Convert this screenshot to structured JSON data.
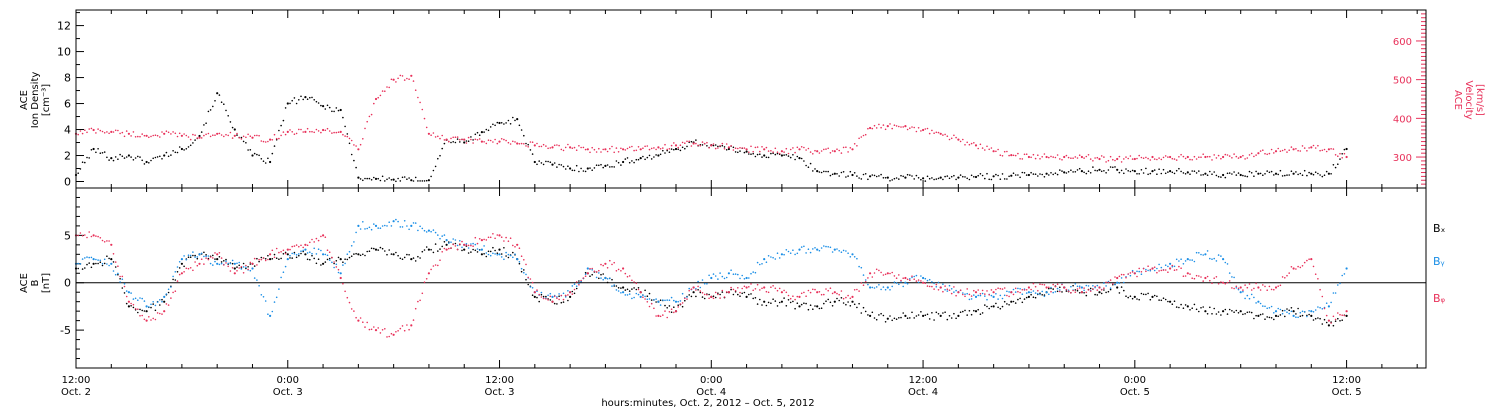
{
  "chart_data": [
    {
      "type": "scatter",
      "panel": "top",
      "ylabel_left": [
        "ACE",
        "Ion Density",
        "[cm⁻³]"
      ],
      "ylabel_right": [
        "ACE",
        "Velocity",
        "[km/s]"
      ],
      "ylim_left": [
        -0.5,
        13.2
      ],
      "ylim_right": [
        220,
        680
      ],
      "yticks_left": [
        "0",
        "2",
        "4",
        "6",
        "8",
        "10",
        "12"
      ],
      "yticks_right": [
        "300",
        "400",
        "500",
        "600"
      ],
      "ytick_values_left": [
        0,
        2,
        4,
        6,
        8,
        10,
        12
      ],
      "ytick_values_right": [
        300,
        400,
        500,
        600
      ],
      "colors": {
        "density": "#000000",
        "velocity": "#e8315a"
      },
      "series": [
        {
          "axis": "left",
          "color": "#000000",
          "x": [
            0,
            1,
            2,
            3,
            4,
            5,
            6,
            7,
            8,
            9,
            10,
            11,
            12,
            13,
            14,
            15,
            16,
            17,
            18,
            19,
            20,
            21,
            22,
            23,
            24,
            25,
            26,
            27,
            28,
            29,
            30,
            31,
            32,
            33,
            34,
            35,
            36,
            37,
            38,
            39,
            40,
            41,
            42,
            43,
            44,
            45,
            46,
            47,
            48,
            49,
            50,
            51,
            52,
            53,
            54,
            55,
            56,
            57,
            58,
            59,
            60,
            61,
            62,
            63,
            64,
            65,
            66,
            67,
            68,
            69,
            70,
            71,
            72
          ],
          "values": [
            0.5,
            2.5,
            1.8,
            2.0,
            1.5,
            2.0,
            2.5,
            3.5,
            6.8,
            4.0,
            2.0,
            1.5,
            6.0,
            6.5,
            5.8,
            5.5,
            0.3,
            0.2,
            0.15,
            0.1,
            0.1,
            3.2,
            3.0,
            3.8,
            4.5,
            4.8,
            1.5,
            1.3,
            1.0,
            1.0,
            1.2,
            1.5,
            1.8,
            2.0,
            2.5,
            3.0,
            2.8,
            2.5,
            2.3,
            2.0,
            2.0,
            1.8,
            0.8,
            0.6,
            0.5,
            0.4,
            0.3,
            0.3,
            0.25,
            0.3,
            0.3,
            0.35,
            0.4,
            0.45,
            0.5,
            0.6,
            0.7,
            0.8,
            0.9,
            0.9,
            0.8,
            0.8,
            0.8,
            0.7,
            0.6,
            0.5,
            0.5,
            0.6,
            0.6,
            0.6,
            0.6,
            0.6,
            2.5
          ]
        },
        {
          "axis": "right",
          "color": "#e8315a",
          "x": [
            0,
            1,
            2,
            3,
            4,
            5,
            6,
            7,
            8,
            9,
            10,
            11,
            12,
            13,
            14,
            15,
            16,
            17,
            18,
            19,
            20,
            21,
            22,
            23,
            24,
            25,
            26,
            27,
            28,
            29,
            30,
            31,
            32,
            33,
            34,
            35,
            36,
            37,
            38,
            39,
            40,
            41,
            42,
            43,
            44,
            45,
            46,
            47,
            48,
            49,
            50,
            51,
            52,
            53,
            54,
            55,
            56,
            57,
            58,
            59,
            60,
            61,
            62,
            63,
            64,
            65,
            66,
            67,
            68,
            69,
            70,
            71,
            72
          ],
          "values": [
            360,
            370,
            365,
            360,
            355,
            360,
            355,
            350,
            360,
            355,
            350,
            345,
            365,
            365,
            370,
            365,
            320,
            450,
            500,
            510,
            360,
            345,
            345,
            340,
            340,
            335,
            330,
            325,
            325,
            320,
            320,
            320,
            320,
            325,
            330,
            335,
            330,
            325,
            320,
            320,
            315,
            320,
            315,
            315,
            320,
            375,
            380,
            380,
            370,
            360,
            345,
            330,
            315,
            305,
            300,
            300,
            300,
            300,
            295,
            295,
            295,
            300,
            300,
            300,
            300,
            300,
            300,
            310,
            315,
            320,
            325,
            320,
            300
          ]
        }
      ]
    },
    {
      "type": "scatter",
      "panel": "bottom",
      "ylabel_left": [
        "ACE",
        "B",
        "[nT]"
      ],
      "ylim": [
        -9,
        10
      ],
      "yticks": [
        "-5",
        "0",
        "5"
      ],
      "ytick_values": [
        -5,
        0,
        5
      ],
      "legend": [
        "Bₓ",
        "Bᵧ",
        "Bᵩ"
      ],
      "colors": {
        "bx": "#000000",
        "by": "#1a8ee6",
        "bz": "#e8315a"
      },
      "series": [
        {
          "color": "#000000",
          "x": [
            0,
            1,
            2,
            3,
            4,
            5,
            6,
            7,
            8,
            9,
            10,
            11,
            12,
            13,
            14,
            15,
            16,
            17,
            18,
            19,
            20,
            21,
            22,
            23,
            24,
            25,
            26,
            27,
            28,
            29,
            30,
            31,
            32,
            33,
            34,
            35,
            36,
            37,
            38,
            39,
            40,
            41,
            42,
            43,
            44,
            45,
            46,
            47,
            48,
            49,
            50,
            51,
            52,
            53,
            54,
            55,
            56,
            57,
            58,
            59,
            60,
            61,
            62,
            63,
            64,
            65,
            66,
            67,
            68,
            69,
            70,
            71,
            72
          ],
          "values": [
            1.5,
            2.0,
            2.5,
            -2.5,
            -3.0,
            -2.0,
            2.0,
            3.0,
            2.5,
            1.5,
            2.0,
            2.5,
            3.0,
            3.0,
            2.0,
            2.5,
            3.0,
            3.5,
            3.0,
            2.5,
            3.5,
            4.0,
            3.5,
            3.0,
            3.5,
            2.5,
            -1.5,
            -2.0,
            -1.5,
            1.0,
            0.5,
            -0.5,
            -1.0,
            -2.0,
            -3.0,
            -1.0,
            -1.5,
            -1.0,
            -1.5,
            -2.0,
            -2.0,
            -2.5,
            -2.5,
            -2.0,
            -2.0,
            -3.5,
            -3.8,
            -3.5,
            -3.5,
            -3.5,
            -3.5,
            -3.0,
            -2.5,
            -2.0,
            -1.5,
            -1.0,
            -0.5,
            -1.0,
            -1.0,
            -0.5,
            -1.5,
            -1.5,
            -2.0,
            -2.5,
            -3.0,
            -3.0,
            -3.0,
            -3.5,
            -3.5,
            -3.0,
            -3.5,
            -4.5,
            -3.5
          ]
        },
        {
          "color": "#1a8ee6",
          "x": [
            0,
            1,
            2,
            3,
            4,
            5,
            6,
            7,
            8,
            9,
            10,
            11,
            12,
            13,
            14,
            15,
            16,
            17,
            18,
            19,
            20,
            21,
            22,
            23,
            24,
            25,
            26,
            27,
            28,
            29,
            30,
            31,
            32,
            33,
            34,
            35,
            36,
            37,
            38,
            39,
            40,
            41,
            42,
            43,
            44,
            45,
            46,
            47,
            48,
            49,
            50,
            51,
            52,
            53,
            54,
            55,
            56,
            57,
            58,
            59,
            60,
            61,
            62,
            63,
            64,
            65,
            66,
            67,
            68,
            69,
            70,
            71,
            72
          ],
          "values": [
            2.0,
            2.5,
            2.0,
            -1.0,
            -2.5,
            -1.5,
            2.5,
            3.0,
            2.0,
            2.0,
            1.5,
            -3.5,
            2.5,
            3.5,
            3.0,
            1.0,
            6.0,
            6.0,
            6.5,
            6.0,
            5.5,
            4.5,
            4.0,
            3.5,
            3.0,
            2.5,
            -1.0,
            -1.5,
            -1.0,
            1.5,
            0.5,
            -1.0,
            -1.5,
            -2.0,
            -2.0,
            -0.5,
            0.5,
            1.0,
            0.5,
            2.5,
            3.0,
            3.5,
            3.5,
            3.5,
            3.0,
            -0.5,
            -0.5,
            0.0,
            0.5,
            -0.5,
            -1.0,
            -1.5,
            -1.5,
            -1.0,
            -1.0,
            -1.0,
            -0.5,
            -0.5,
            -0.5,
            0.0,
            1.0,
            1.5,
            2.0,
            2.5,
            3.0,
            2.5,
            -1.0,
            -2.0,
            -3.0,
            -3.5,
            -3.0,
            -2.5,
            1.5
          ]
        },
        {
          "color": "#e8315a",
          "x": [
            0,
            1,
            2,
            3,
            4,
            5,
            6,
            7,
            8,
            9,
            10,
            11,
            12,
            13,
            14,
            15,
            16,
            17,
            18,
            19,
            20,
            21,
            22,
            23,
            24,
            25,
            26,
            27,
            28,
            29,
            30,
            31,
            32,
            33,
            34,
            35,
            36,
            37,
            38,
            39,
            40,
            41,
            42,
            43,
            44,
            45,
            46,
            47,
            48,
            49,
            50,
            51,
            52,
            53,
            54,
            55,
            56,
            57,
            58,
            59,
            60,
            61,
            62,
            63,
            64,
            65,
            66,
            67,
            68,
            69,
            70,
            71,
            72
          ],
          "values": [
            5.0,
            5.0,
            4.0,
            -2.0,
            -4.0,
            -3.0,
            1.0,
            2.0,
            3.0,
            1.0,
            2.0,
            3.0,
            3.5,
            4.0,
            5.0,
            0.5,
            -4.0,
            -5.0,
            -5.5,
            -4.5,
            1.0,
            3.5,
            4.0,
            4.5,
            5.0,
            4.0,
            -1.0,
            -2.0,
            -1.0,
            1.0,
            2.0,
            1.5,
            -1.0,
            -3.5,
            -3.0,
            -0.5,
            -1.5,
            -1.0,
            -0.5,
            -0.5,
            -1.0,
            -1.5,
            -1.0,
            -1.0,
            -1.5,
            1.0,
            1.0,
            0.5,
            0.0,
            -0.5,
            -1.0,
            -1.0,
            -1.0,
            -1.0,
            -0.5,
            -0.5,
            -0.5,
            -1.0,
            -0.5,
            0.5,
            1.0,
            1.5,
            1.5,
            1.0,
            0.5,
            0.0,
            -0.5,
            -0.5,
            -0.5,
            1.5,
            2.5,
            -4.0,
            -3.0
          ]
        }
      ]
    }
  ],
  "xaxis": {
    "ticks": [
      {
        "x": 0,
        "time": "12:00",
        "date": "Oct. 2"
      },
      {
        "x": 12,
        "time": "0:00",
        "date": "Oct. 3"
      },
      {
        "x": 24,
        "time": "12:00",
        "date": "Oct. 3"
      },
      {
        "x": 36,
        "time": "0:00",
        "date": "Oct. 4"
      },
      {
        "x": 48,
        "time": "12:00",
        "date": "Oct. 4"
      },
      {
        "x": 60,
        "time": "0:00",
        "date": "Oct. 5"
      },
      {
        "x": 72,
        "time": "12:00",
        "date": "Oct. 5"
      }
    ],
    "xlim": [
      0,
      76.5
    ],
    "title": "hours:minutes, Oct.  2, 2012 – Oct.  5, 2012"
  }
}
